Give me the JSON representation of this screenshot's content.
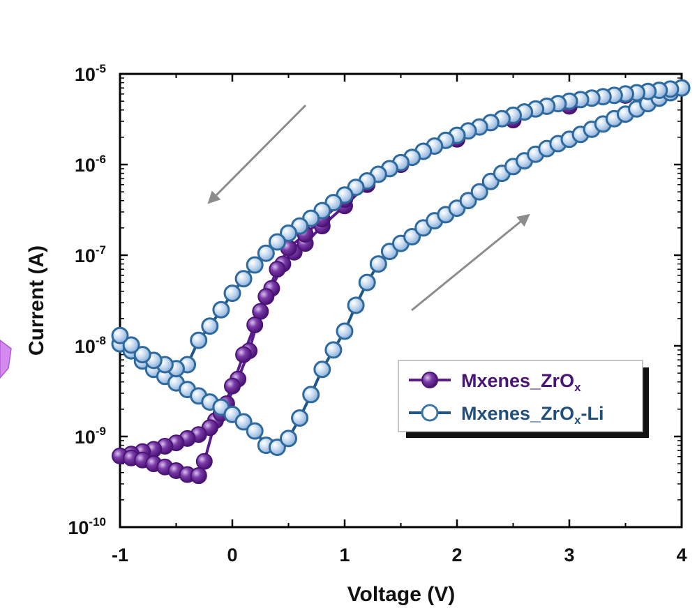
{
  "chart_data": {
    "type": "line",
    "xlabel": "Voltage (V)",
    "ylabel": "Current (A)",
    "xlim": [
      -1,
      4
    ],
    "ylim_exponent": [
      -10,
      -5
    ],
    "yscale": "log",
    "x_ticks": [
      "-1",
      "0",
      "1",
      "2",
      "3",
      "4"
    ],
    "y_ticks": [
      {
        "base": "10",
        "exp": "-5"
      },
      {
        "base": "10",
        "exp": "-6"
      },
      {
        "base": "10",
        "exp": "-7"
      },
      {
        "base": "10",
        "exp": "-8"
      },
      {
        "base": "10",
        "exp": "-9"
      },
      {
        "base": "10",
        "exp": "-10"
      }
    ],
    "legend_position": "lower-right",
    "annotations": [
      "arrow pointing down-left (reverse sweep)",
      "arrow pointing up-right (forward sweep)"
    ],
    "series": [
      {
        "name": "Mxenes_ZrOx",
        "label_main": "Mxenes_ZrO",
        "label_sub": "x",
        "label_tail": "",
        "color": "#5a1d8c",
        "marker": "filled-circle",
        "forward": [
          [
            -0.3,
            3.7e-10
          ],
          [
            -0.25,
            5.3e-10
          ],
          [
            -0.15,
            1.5e-09
          ],
          [
            -0.05,
            2.3e-09
          ],
          [
            0.05,
            4.3e-09
          ],
          [
            0.15,
            8.8e-09
          ],
          [
            0.25,
            2.4e-08
          ],
          [
            0.35,
            4.3e-08
          ],
          [
            0.45,
            8e-08
          ],
          [
            0.55,
            1.08e-07
          ],
          [
            0.65,
            1.35e-07
          ],
          [
            0.8,
            2.1e-07
          ],
          [
            1.0,
            3.5e-07
          ],
          [
            1.2,
            6e-07
          ],
          [
            1.5,
            1e-06
          ],
          [
            2.0,
            2e-06
          ],
          [
            2.5,
            3.2e-06
          ],
          [
            3.0,
            4.5e-06
          ],
          [
            3.5,
            5.8e-06
          ],
          [
            4.0,
            7e-06
          ]
        ],
        "reverse": [
          [
            4.0,
            7e-06
          ],
          [
            3.5,
            5.8e-06
          ],
          [
            3.0,
            4.4e-06
          ],
          [
            2.5,
            3.1e-06
          ],
          [
            2.0,
            1.9e-06
          ],
          [
            1.5,
            1e-06
          ],
          [
            1.2,
            6.2e-07
          ],
          [
            1.0,
            4.1e-07
          ],
          [
            0.8,
            2.5e-07
          ],
          [
            0.65,
            1.7e-07
          ],
          [
            0.5,
            1.2e-07
          ],
          [
            0.4,
            7e-08
          ],
          [
            0.3,
            3.5e-08
          ],
          [
            0.2,
            1.7e-08
          ],
          [
            0.1,
            8e-09
          ],
          [
            0.0,
            3.6e-09
          ],
          [
            -0.1,
            1.8e-09
          ],
          [
            -0.2,
            1.25e-09
          ],
          [
            -0.3,
            1.05e-09
          ],
          [
            -0.4,
            9.5e-10
          ],
          [
            -0.5,
            8.5e-10
          ],
          [
            -0.6,
            7.8e-10
          ],
          [
            -0.7,
            7.2e-10
          ],
          [
            -0.8,
            6.8e-10
          ],
          [
            -0.9,
            6.4e-10
          ],
          [
            -1.0,
            6.1e-10
          ],
          [
            -0.9,
            5.8e-10
          ],
          [
            -0.8,
            5.5e-10
          ],
          [
            -0.7,
            5e-10
          ],
          [
            -0.6,
            4.6e-10
          ],
          [
            -0.5,
            4.2e-10
          ],
          [
            -0.4,
            3.8e-10
          ],
          [
            -0.3,
            3.7e-10
          ]
        ]
      },
      {
        "name": "Mxenes_ZrOx-Li",
        "label_main": "Mxenes_ZrO",
        "label_sub": "x",
        "label_tail": "-Li",
        "color": "#1f5684",
        "marker": "open-circle",
        "forward": [
          [
            -1.0,
            1.05e-08
          ],
          [
            -0.9,
            8.8e-09
          ],
          [
            -0.8,
            6.8e-09
          ],
          [
            -0.7,
            5.5e-09
          ],
          [
            -0.6,
            4.6e-09
          ],
          [
            -0.5,
            3.9e-09
          ],
          [
            -0.4,
            3.3e-09
          ],
          [
            -0.3,
            2.8e-09
          ],
          [
            -0.2,
            2.4e-09
          ],
          [
            -0.1,
            2.1e-09
          ],
          [
            0.0,
            1.75e-09
          ],
          [
            0.1,
            1.45e-09
          ],
          [
            0.2,
            1.15e-09
          ],
          [
            0.3,
            8e-10
          ],
          [
            0.4,
            7.6e-10
          ],
          [
            0.5,
            9.5e-10
          ],
          [
            0.6,
            1.6e-09
          ],
          [
            0.7,
            2.9e-09
          ],
          [
            0.8,
            5.5e-09
          ],
          [
            0.9,
            9e-09
          ],
          [
            1.0,
            1.45e-08
          ],
          [
            1.1,
            2.8e-08
          ],
          [
            1.2,
            5e-08
          ],
          [
            1.3,
            8e-08
          ],
          [
            1.4,
            1.1e-07
          ],
          [
            1.5,
            1.35e-07
          ],
          [
            1.6,
            1.6e-07
          ],
          [
            1.7,
            2e-07
          ],
          [
            1.8,
            2.4e-07
          ],
          [
            1.9,
            2.8e-07
          ],
          [
            2.0,
            3.3e-07
          ],
          [
            2.1,
            4e-07
          ],
          [
            2.2,
            5e-07
          ],
          [
            2.3,
            6.5e-07
          ],
          [
            2.4,
            8e-07
          ],
          [
            2.5,
            9.5e-07
          ],
          [
            2.6,
            1.1e-06
          ],
          [
            2.7,
            1.3e-06
          ],
          [
            2.8,
            1.5e-06
          ],
          [
            2.9,
            1.7e-06
          ],
          [
            3.0,
            1.9e-06
          ],
          [
            3.1,
            2.15e-06
          ],
          [
            3.2,
            2.45e-06
          ],
          [
            3.3,
            2.8e-06
          ],
          [
            3.4,
            3.2e-06
          ],
          [
            3.5,
            3.6e-06
          ],
          [
            3.6,
            4.1e-06
          ],
          [
            3.7,
            4.7e-06
          ],
          [
            3.8,
            5.4e-06
          ],
          [
            3.9,
            6.2e-06
          ],
          [
            4.0,
            7e-06
          ]
        ],
        "reverse": [
          [
            4.0,
            7e-06
          ],
          [
            3.9,
            6.8e-06
          ],
          [
            3.8,
            6.6e-06
          ],
          [
            3.7,
            6.4e-06
          ],
          [
            3.6,
            6.2e-06
          ],
          [
            3.5,
            6e-06
          ],
          [
            3.4,
            5.8e-06
          ],
          [
            3.3,
            5.6e-06
          ],
          [
            3.2,
            5.4e-06
          ],
          [
            3.1,
            5.2e-06
          ],
          [
            3.0,
            5e-06
          ],
          [
            2.9,
            4.7e-06
          ],
          [
            2.8,
            4.4e-06
          ],
          [
            2.7,
            4.1e-06
          ],
          [
            2.6,
            3.8e-06
          ],
          [
            2.5,
            3.5e-06
          ],
          [
            2.4,
            3.2e-06
          ],
          [
            2.3,
            2.9e-06
          ],
          [
            2.2,
            2.6e-06
          ],
          [
            2.1,
            2.35e-06
          ],
          [
            2.0,
            2.1e-06
          ],
          [
            1.9,
            1.85e-06
          ],
          [
            1.8,
            1.6e-06
          ],
          [
            1.7,
            1.4e-06
          ],
          [
            1.6,
            1.2e-06
          ],
          [
            1.5,
            1.05e-06
          ],
          [
            1.4,
            9e-07
          ],
          [
            1.3,
            7.8e-07
          ],
          [
            1.2,
            6.6e-07
          ],
          [
            1.1,
            5.6e-07
          ],
          [
            1.0,
            4.6e-07
          ],
          [
            0.9,
            3.8e-07
          ],
          [
            0.8,
            3.1e-07
          ],
          [
            0.7,
            2.55e-07
          ],
          [
            0.6,
            2.1e-07
          ],
          [
            0.5,
            1.75e-07
          ],
          [
            0.4,
            1.4e-07
          ],
          [
            0.3,
            1.05e-07
          ],
          [
            0.2,
            7.8e-08
          ],
          [
            0.1,
            5.5e-08
          ],
          [
            0.0,
            3.8e-08
          ],
          [
            -0.1,
            2.5e-08
          ],
          [
            -0.2,
            1.65e-08
          ],
          [
            -0.3,
            1.15e-08
          ],
          [
            -0.4,
            6.2e-09
          ],
          [
            -0.5,
            5.6e-09
          ],
          [
            -0.6,
            6.2e-09
          ],
          [
            -0.7,
            6.9e-09
          ],
          [
            -0.8,
            8e-09
          ],
          [
            -0.9,
            1.02e-08
          ],
          [
            -1.0,
            1.3e-08
          ]
        ]
      }
    ]
  }
}
